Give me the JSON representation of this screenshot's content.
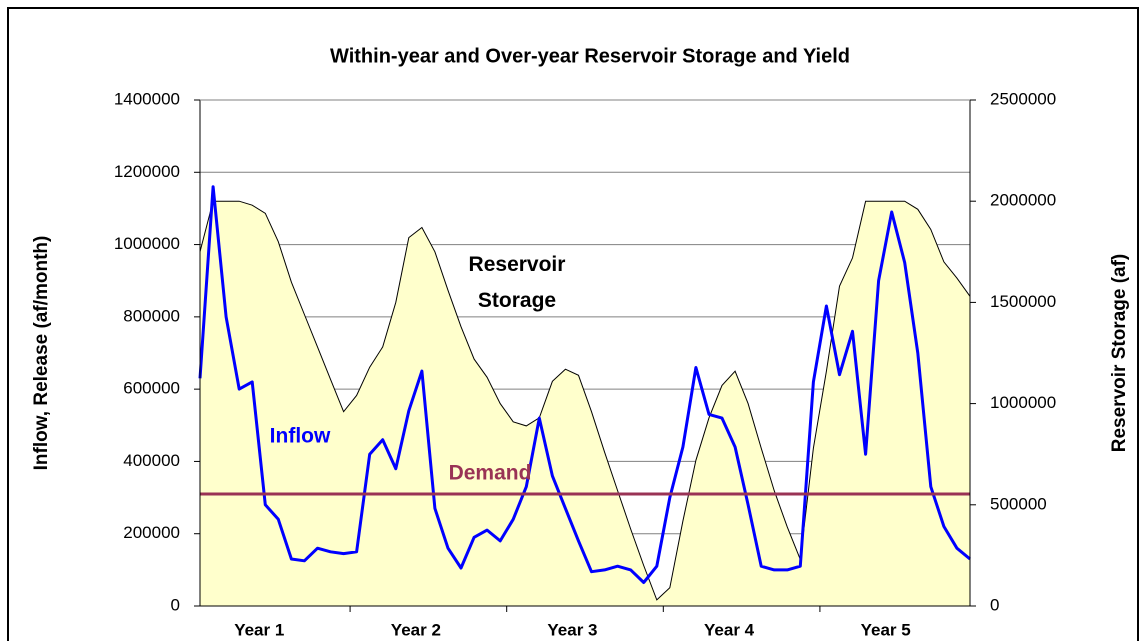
{
  "chart_data": {
    "type": "line",
    "title": "Within-year and Over-year Reservoir Storage and Yield",
    "ylabel": "Inflow, Release (af/month)",
    "y2label": "Reservoir Storage (af)",
    "categories": [
      null,
      null,
      null,
      null,
      null,
      "Year 1",
      null,
      null,
      null,
      null,
      null,
      null,
      null,
      null,
      null,
      null,
      null,
      "Year 2",
      null,
      null,
      null,
      null,
      null,
      null,
      null,
      null,
      null,
      null,
      null,
      "Year 3",
      null,
      null,
      null,
      null,
      null,
      null,
      null,
      null,
      null,
      null,
      null,
      "Year 4",
      null,
      null,
      null,
      null,
      null,
      null,
      null,
      null,
      null,
      null,
      null,
      "Year 5",
      null,
      null,
      null,
      null,
      null,
      null
    ],
    "ylim": [
      0,
      1400000
    ],
    "yticks": [
      0,
      200000,
      400000,
      600000,
      800000,
      1000000,
      1200000,
      1400000
    ],
    "y2lim": [
      0,
      2500000
    ],
    "y2ticks": [
      0,
      500000,
      1000000,
      1500000,
      2000000,
      2500000
    ],
    "grid": true,
    "series": [
      {
        "name": "Reservoir Storage",
        "color": "#000000",
        "fill": "#ffffcc",
        "axis": "y2",
        "values": [
          1750000,
          2000000,
          2000000,
          2000000,
          1980000,
          1940000,
          1800000,
          1600000,
          1440000,
          1280000,
          1120000,
          960000,
          1040000,
          1180000,
          1280000,
          1500000,
          1820000,
          1870000,
          1750000,
          1560000,
          1380000,
          1220000,
          1130000,
          1000000,
          910000,
          890000,
          930000,
          1110000,
          1170000,
          1140000,
          960000,
          760000,
          570000,
          380000,
          200000,
          30000,
          90000,
          420000,
          720000,
          930000,
          1090000,
          1160000,
          1000000,
          780000,
          570000,
          390000,
          230000,
          780000,
          1160000,
          1580000,
          1720000,
          2000000,
          2000000,
          2000000,
          2000000,
          1960000,
          1860000,
          1700000,
          1620000,
          1530000
        ]
      },
      {
        "name": "Inflow",
        "color": "#0000ff",
        "values": [
          630000,
          1160000,
          800000,
          600000,
          620000,
          280000,
          240000,
          130000,
          125000,
          160000,
          150000,
          145000,
          150000,
          420000,
          460000,
          380000,
          540000,
          650000,
          270000,
          160000,
          105000,
          190000,
          210000,
          180000,
          240000,
          330000,
          520000,
          360000,
          270000,
          180000,
          95000,
          100000,
          110000,
          100000,
          65000,
          110000,
          300000,
          440000,
          660000,
          530000,
          520000,
          440000,
          280000,
          110000,
          100000,
          100000,
          110000,
          620000,
          830000,
          640000,
          760000,
          420000,
          900000,
          1090000,
          950000,
          700000,
          330000,
          220000,
          160000,
          130000
        ]
      }
    ],
    "reference_line": {
      "name": "Demand",
      "value": 310000,
      "color": "#993355"
    }
  }
}
